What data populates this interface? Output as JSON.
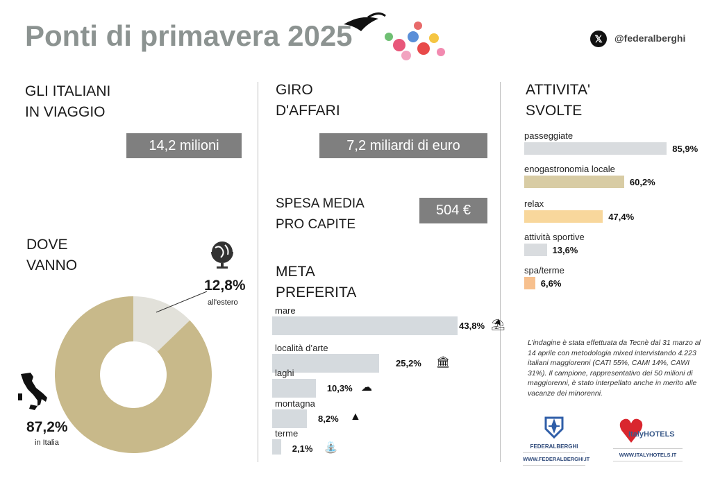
{
  "header": {
    "title": "Ponti di primavera 2025",
    "social_handle": "@federalberghi"
  },
  "travel": {
    "heading_line1": "GLI ITALIANI",
    "heading_line2": "IN VIAGGIO",
    "value": "14,2 milioni"
  },
  "turnover": {
    "heading_line1": "GIRO",
    "heading_line2": "D'AFFARI",
    "value": "7,2 miliardi di euro"
  },
  "spend": {
    "heading_line1": "SPESA MEDIA",
    "heading_line2": "PRO CAPITE",
    "value": "504 €"
  },
  "where": {
    "heading_line1": "DOVE",
    "heading_line2": "VANNO",
    "abroad_value": "12,8%",
    "abroad_label": "all'estero",
    "italy_value": "87,2%",
    "italy_label": "in Italia"
  },
  "dest": {
    "heading_line1": "META",
    "heading_line2": "PREFERITA"
  },
  "activities": {
    "heading_line1": "ATTIVITA'",
    "heading_line2": "SVOLTE"
  },
  "note": "L’indagine è stata effettuata da Tecnè dal 31 marzo al 14 aprile con metodologia mixed intervistando 4.223 italiani maggiorenni (CATI 55%, CAMI 14%, CAWI 31%). Il campione, rappresentativo dei 50 milioni di maggiorenni, è stato interpellato anche in merito alle vacanze dei minorenni.",
  "logos": {
    "federalberghi": "FEDERALBERGHI",
    "federalberghi_url": "WWW.FEDERALBERGHI.IT",
    "italyhotels": "ItalyHOTELS",
    "italyhotels_url": "WWW.ITALYHOTELS.IT"
  },
  "chart_data": [
    {
      "type": "pie",
      "title": "DOVE VANNO",
      "categories": [
        "in Italia",
        "all'estero"
      ],
      "values": [
        87.2,
        12.8
      ],
      "labels": [
        "87,2%",
        "12,8%"
      ],
      "colors": [
        "#c8b98a",
        "#e2e1da"
      ]
    },
    {
      "type": "bar",
      "title": "META PREFERITA",
      "categories": [
        "mare",
        "località d’arte",
        "laghi",
        "montagna",
        "terme"
      ],
      "values": [
        43.8,
        25.2,
        10.3,
        8.2,
        2.1
      ],
      "labels": [
        "43,8%",
        "25,2%",
        "10,3%",
        "8,2%",
        "2,1%"
      ],
      "icons": [
        "beach-umbrella-icon",
        "museum-icon",
        "lake-icon",
        "mountain-icon",
        "fountain-icon"
      ],
      "color": "#d5dade"
    },
    {
      "type": "bar",
      "title": "ATTIVITA' SVOLTE",
      "categories": [
        "passeggiate",
        "enogastronomia locale",
        "relax",
        "attività sportive",
        "spa/terme"
      ],
      "values": [
        85.9,
        60.2,
        47.4,
        13.6,
        6.6
      ],
      "labels": [
        "85,9%",
        "60,2%",
        "47,4%",
        "13,6%",
        "6,6%"
      ],
      "colors": [
        "#d9dcdf",
        "#d8cca4",
        "#f8d79c",
        "#d9dcdf",
        "#f7c08e"
      ]
    }
  ]
}
